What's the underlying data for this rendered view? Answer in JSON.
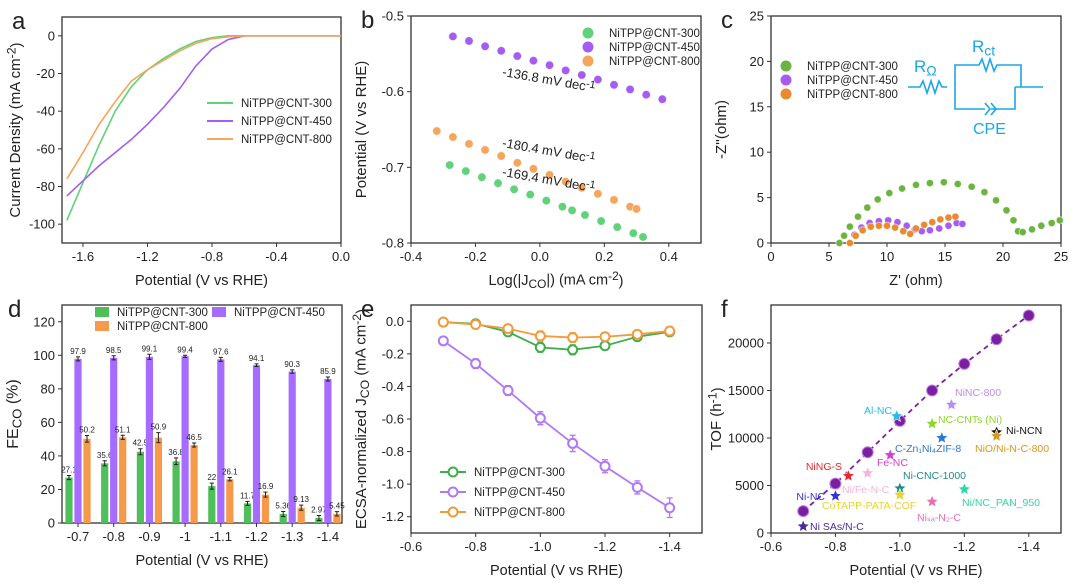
{
  "colors": {
    "green": "#55c25f",
    "purple": "#a55cf2",
    "orange": "#f6a55c",
    "axis": "#333333",
    "fit_line": "#7b1fa2",
    "circuit": "#1aa7e6"
  },
  "chart_data": [
    {
      "panel": "a",
      "type": "line",
      "xlabel": "Potential (V vs RHE)",
      "ylabel": "Current Density (mA cm^{-2})",
      "xlim": [
        -1.73,
        0
      ],
      "ylim": [
        -110,
        10
      ],
      "xticks": [
        -1.6,
        -1.2,
        -0.8,
        -0.4,
        0.0
      ],
      "xtick_labels": [
        "-1.6",
        "-1.2",
        "-0.8",
        "-0.4",
        "0.0"
      ],
      "yticks": [
        0,
        -20,
        -40,
        -60,
        -80,
        -100
      ],
      "ytick_labels": [
        "0",
        "-20",
        "-40",
        "-60",
        "-80",
        "-100"
      ],
      "legend": "right",
      "series": [
        {
          "name": "NiTPP@CNT-300",
          "color": "#5fd27a",
          "x": [
            -1.7,
            -1.6,
            -1.5,
            -1.4,
            -1.3,
            -1.2,
            -1.1,
            -1.0,
            -0.9,
            -0.8,
            -0.7,
            0
          ],
          "y": [
            -98,
            -78,
            -58,
            -40,
            -27,
            -18,
            -12,
            -7,
            -3,
            -1,
            0,
            0
          ]
        },
        {
          "name": "NiTPP@CNT-450",
          "color": "#a55cf2",
          "x": [
            -1.7,
            -1.6,
            -1.5,
            -1.4,
            -1.3,
            -1.2,
            -1.1,
            -1.0,
            -0.9,
            -0.8,
            -0.7,
            -0.6,
            0
          ],
          "y": [
            -85,
            -77,
            -69,
            -62,
            -55,
            -47,
            -38,
            -28,
            -16,
            -7,
            -2,
            0,
            0
          ]
        },
        {
          "name": "NiTPP@CNT-800",
          "color": "#f6a55c",
          "x": [
            -1.7,
            -1.6,
            -1.5,
            -1.4,
            -1.3,
            -1.2,
            -1.1,
            -1.0,
            -0.9,
            -0.8,
            -0.7,
            -0.6,
            0
          ],
          "y": [
            -76,
            -62,
            -47,
            -35,
            -24,
            -18,
            -13,
            -8,
            -4,
            -1.5,
            -0.5,
            0,
            0
          ]
        }
      ]
    },
    {
      "panel": "b",
      "type": "scatter",
      "xlabel": "Log(|J_{CO}|) (mA cm^{-2})",
      "ylabel": "Potential (V vs RHE)",
      "xlim": [
        -0.4,
        0.5
      ],
      "ylim": [
        -0.8,
        -0.5
      ],
      "xticks": [
        -0.4,
        -0.2,
        0.0,
        0.2,
        0.4
      ],
      "xtick_labels": [
        "-0.4",
        "-0.2",
        "0.0",
        "0.2",
        "0.4"
      ],
      "yticks": [
        -0.5,
        -0.6,
        -0.7,
        -0.8
      ],
      "ytick_labels": [
        "-0.5",
        "-0.6",
        "-0.7",
        "-0.8"
      ],
      "legend": "top-right",
      "annotations": [
        "-136.8 mV dec^{-1}",
        "-180.4 mV dec^{-1}",
        "-169.4 mV dec^{-1}"
      ],
      "series": [
        {
          "name": "NiTPP@CNT-300",
          "color": "#5fd27a",
          "x": [
            -0.28,
            -0.23,
            -0.18,
            -0.13,
            -0.08,
            -0.03,
            0.02,
            0.07,
            0.1,
            0.14,
            0.19,
            0.24,
            0.29,
            0.32
          ],
          "y": [
            -0.697,
            -0.705,
            -0.713,
            -0.721,
            -0.729,
            -0.736,
            -0.744,
            -0.752,
            -0.757,
            -0.763,
            -0.771,
            -0.779,
            -0.787,
            -0.792
          ]
        },
        {
          "name": "NiTPP@CNT-450",
          "color": "#a55cf2",
          "x": [
            -0.27,
            -0.22,
            -0.17,
            -0.12,
            -0.07,
            -0.02,
            0.03,
            0.08,
            0.13,
            0.18,
            0.23,
            0.28,
            0.33,
            0.38
          ],
          "y": [
            -0.527,
            -0.533,
            -0.54,
            -0.546,
            -0.553,
            -0.559,
            -0.565,
            -0.572,
            -0.578,
            -0.584,
            -0.591,
            -0.597,
            -0.604,
            -0.61
          ]
        },
        {
          "name": "NiTPP@CNT-800",
          "color": "#f6a55c",
          "x": [
            -0.32,
            -0.27,
            -0.22,
            -0.17,
            -0.12,
            -0.07,
            -0.02,
            0.03,
            0.08,
            0.13,
            0.18,
            0.23,
            0.28,
            0.3
          ],
          "y": [
            -0.652,
            -0.66,
            -0.669,
            -0.677,
            -0.685,
            -0.694,
            -0.702,
            -0.71,
            -0.719,
            -0.727,
            -0.735,
            -0.743,
            -0.752,
            -0.755
          ]
        }
      ]
    },
    {
      "panel": "c",
      "type": "scatter",
      "xlabel": "Z' (ohm)",
      "ylabel": "-Z''(ohm)",
      "xlim": [
        0,
        25
      ],
      "ylim": [
        0,
        25
      ],
      "xticks": [
        0,
        5,
        10,
        15,
        20,
        25
      ],
      "xtick_labels": [
        "0",
        "5",
        "10",
        "15",
        "20",
        "25"
      ],
      "yticks": [
        0,
        5,
        10,
        15,
        20,
        25
      ],
      "ytick_labels": [
        "0",
        "5",
        "10",
        "15",
        "20",
        "25"
      ],
      "legend": "top-left",
      "inset": {
        "r_ohm": "R_{Ω}",
        "r_ct": "R_{ct}",
        "cpe": "CPE"
      },
      "series": [
        {
          "name": "NiTPP@CNT-300",
          "color": "#6cb43f",
          "x": [
            5.9,
            6.3,
            6.8,
            7.5,
            8.3,
            9.2,
            10.2,
            11.3,
            12.5,
            13.7,
            14.9,
            16.1,
            17.3,
            18.4,
            19.4,
            20.3,
            20.9,
            21.3,
            21.7,
            22.5,
            23.3,
            24.2,
            24.9
          ],
          "y": [
            0,
            0.8,
            1.8,
            2.9,
            3.9,
            4.8,
            5.5,
            6.0,
            6.4,
            6.6,
            6.7,
            6.5,
            6.2,
            5.6,
            4.7,
            3.6,
            2.5,
            1.3,
            1.2,
            1.5,
            1.9,
            2.2,
            2.5
          ]
        },
        {
          "name": "NiTPP@CNT-450",
          "color": "#a55cf2",
          "x": [
            6.8,
            7.2,
            7.8,
            8.5,
            9.3,
            10.1,
            10.9,
            11.7,
            12.4,
            13.0,
            13.7,
            14.5,
            15.3,
            16.0,
            16.5
          ],
          "y": [
            0,
            0.9,
            1.7,
            2.2,
            2.4,
            2.5,
            2.3,
            1.9,
            1.5,
            1.3,
            1.4,
            1.6,
            1.9,
            2.2,
            2.1
          ]
        },
        {
          "name": "NiTPP@CNT-800",
          "color": "#e98a2e",
          "x": [
            6.8,
            7.3,
            7.9,
            8.6,
            9.3,
            10.0,
            10.7,
            11.4,
            12.0,
            12.5,
            13.2,
            13.9,
            14.6,
            15.3,
            15.9
          ],
          "y": [
            0,
            0.8,
            1.4,
            1.8,
            1.9,
            1.9,
            1.7,
            1.3,
            1.0,
            1.6,
            2.0,
            2.3,
            2.6,
            2.8,
            2.9
          ]
        }
      ]
    },
    {
      "panel": "d",
      "type": "bar",
      "xlabel": "Potential (V vs RHE)",
      "ylabel": "FE_{CO} (%)",
      "ylim": [
        0,
        130
      ],
      "yticks": [
        0,
        20,
        40,
        60,
        80,
        100,
        120
      ],
      "ytick_labels": [
        "0",
        "20",
        "40",
        "60",
        "80",
        "100",
        "120"
      ],
      "categories": [
        "-0.7",
        "-0.8",
        "-0.9",
        "-1",
        "-1.1",
        "-1.2",
        "-1.3",
        "-1.4"
      ],
      "legend": "top",
      "series": [
        {
          "name": "NiTPP@CNT-300",
          "color": "#4fbf5a",
          "values": [
            27.1,
            35.6,
            42.5,
            36.8,
            22,
            11.7,
            5.36,
            2.97
          ],
          "labels": [
            "27.1",
            "35.6",
            "42.5",
            "36.8",
            "22",
            "11.7",
            "5.36",
            "2.97"
          ],
          "errors": [
            1.2,
            1.5,
            1.8,
            2,
            1.8,
            1.2,
            1.5,
            1.5
          ]
        },
        {
          "name": "NiTPP@CNT-450",
          "color": "#a66cff",
          "values": [
            97.9,
            98.5,
            99.1,
            99.4,
            97.6,
            94.1,
            90.3,
            85.9
          ],
          "labels": [
            "97.9",
            "98.5",
            "99.1",
            "99.4",
            "97.6",
            "94.1",
            "90.3",
            "85.9"
          ],
          "errors": [
            1.2,
            1.2,
            1.5,
            0.6,
            1.2,
            0.8,
            1,
            1.2
          ]
        },
        {
          "name": "NiTPP@CNT-800",
          "color": "#f59a4a",
          "values": [
            50.2,
            51.1,
            50.9,
            46.5,
            26.1,
            16.9,
            9.13,
            5.45
          ],
          "labels": [
            "50.2",
            "51.1",
            "50.9",
            "46.5",
            "26.1",
            "16.9",
            "9.13",
            "5.45"
          ],
          "errors": [
            2,
            1.2,
            3,
            1.2,
            1,
            1.5,
            1.5,
            1.3
          ]
        }
      ]
    },
    {
      "panel": "e",
      "type": "line",
      "xlabel": "Potential (V vs RHE)",
      "ylabel": "ECSA-normalized J_{CO} (mA cm^{-2})",
      "xlim": [
        -0.6,
        -1.5
      ],
      "ylim": [
        -1.3,
        0.1
      ],
      "xticks": [
        -0.6,
        -0.8,
        -1.0,
        -1.2,
        -1.4
      ],
      "xtick_labels": [
        "-0.6",
        "-0.8",
        "-1.0",
        "-1.2",
        "-1.4"
      ],
      "yticks": [
        0,
        -0.2,
        -0.4,
        -0.6,
        -0.8,
        -1.0,
        -1.2
      ],
      "ytick_labels": [
        "0.0",
        "-0.2",
        "-0.4",
        "-0.6",
        "-0.8",
        "-1.0",
        "-1.2"
      ],
      "legend": "bottom-left",
      "x": [
        -0.7,
        -0.8,
        -0.9,
        -1.0,
        -1.1,
        -1.2,
        -1.3,
        -1.4
      ],
      "series": [
        {
          "name": "NiTPP@CNT-300",
          "color": "#3fae4a",
          "values": [
            -0.005,
            -0.015,
            -0.065,
            -0.16,
            -0.175,
            -0.15,
            -0.095,
            -0.065
          ],
          "errors": [
            0.01,
            0.01,
            0.02,
            0.03,
            0.03,
            0.02,
            0.02,
            0.01
          ]
        },
        {
          "name": "NiTPP@CNT-450",
          "color": "#b277f5",
          "values": [
            -0.12,
            -0.26,
            -0.425,
            -0.595,
            -0.75,
            -0.89,
            -1.02,
            -1.145
          ],
          "errors": [
            0.02,
            0.03,
            0.03,
            0.04,
            0.05,
            0.04,
            0.04,
            0.06
          ]
        },
        {
          "name": "NiTPP@CNT-800",
          "color": "#f39a3c",
          "values": [
            -0.005,
            -0.02,
            -0.045,
            -0.09,
            -0.1,
            -0.095,
            -0.08,
            -0.06
          ],
          "errors": [
            0.01,
            0.01,
            0.02,
            0.03,
            0.03,
            0.02,
            0.02,
            0.01
          ]
        }
      ]
    },
    {
      "panel": "f",
      "type": "scatter",
      "xlabel": "Potential (V vs RHE)",
      "ylabel": "TOF (h^{-1})",
      "xlim": [
        -0.6,
        -1.5
      ],
      "ylim": [
        0,
        24000
      ],
      "xticks": [
        -0.6,
        -0.8,
        -1.0,
        -1.2,
        -1.4
      ],
      "xtick_labels": [
        "-0.6",
        "-0.8",
        "-1.0",
        "-1.2",
        "-1.4"
      ],
      "yticks": [
        0,
        5000,
        10000,
        15000,
        20000
      ],
      "ytick_labels": [
        "0",
        "5000",
        "10000",
        "15000",
        "20000"
      ],
      "main_series": {
        "color": "#7b1fa2",
        "x": [
          -0.7,
          -0.8,
          -0.9,
          -1.0,
          -1.1,
          -1.2,
          -1.3,
          -1.4
        ],
        "y": [
          2300,
          5200,
          8500,
          11800,
          15000,
          17800,
          20400,
          22900
        ]
      },
      "references": [
        {
          "label": "Ni SAs/N-C",
          "x": -0.7,
          "y": 700,
          "color": "#4b2a9e"
        },
        {
          "label": "Ni-NC",
          "x": -0.8,
          "y": 3900,
          "color": "#3535d6"
        },
        {
          "label": "NiNG-S",
          "x": -0.84,
          "y": 6000,
          "color": "#e8262b"
        },
        {
          "label": "Ni/Fe-N-C",
          "x": -0.9,
          "y": 6300,
          "color": "#f4b6d6"
        },
        {
          "label": "Fe-NC",
          "x": -0.97,
          "y": 8200,
          "color": "#d63fd6"
        },
        {
          "label": "Al-NC",
          "x": -0.99,
          "y": 12300,
          "color": "#2ab8e8"
        },
        {
          "label": "Ni-CNC-1000",
          "x": -1.0,
          "y": 4700,
          "color": "#1e8c84"
        },
        {
          "label": "CoTAPP-PATA-COF",
          "x": -1.0,
          "y": 4000,
          "color": "#e8d42a"
        },
        {
          "label": "NC-CNTs (Ni)",
          "x": -1.1,
          "y": 11500,
          "color": "#8fd62c"
        },
        {
          "label": "C-Zn₁Ni₄ZIF-8",
          "x": -1.13,
          "y": 10000,
          "color": "#2a78d6"
        },
        {
          "label": "NiNC-800",
          "x": -1.16,
          "y": 13500,
          "color": "#b48ef0"
        },
        {
          "label": "Niₛₐ-N₂-C",
          "x": -1.1,
          "y": 3300,
          "color": "#e870b0"
        },
        {
          "label": "Ni/NC_PAN_950",
          "x": -1.2,
          "y": 4600,
          "color": "#2ed6a8"
        },
        {
          "label": "Ni-NCN",
          "x": -1.3,
          "y": 10600,
          "color": "#111111"
        },
        {
          "label": "NiO/Ni-N-C-800",
          "x": -1.3,
          "y": 10200,
          "color": "#d9961e"
        }
      ]
    }
  ]
}
